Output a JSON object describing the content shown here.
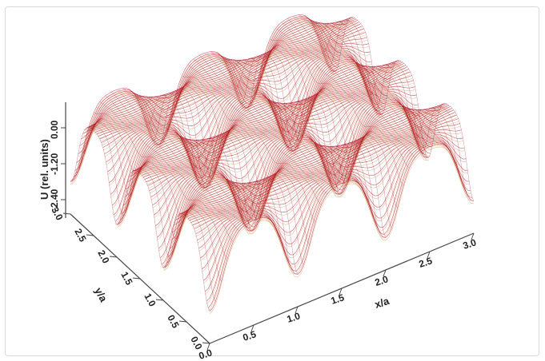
{
  "chart_data": {
    "type": "surface3d",
    "title": "",
    "xlabel": "x/a",
    "ylabel": "y/a",
    "zlabel": "U  (rel. units)",
    "x_ticks": [
      "0.0",
      "0.5",
      "1.0",
      "1.5",
      "2.0",
      "2.5",
      "3.0"
    ],
    "y_ticks": [
      "0.0",
      "0.5",
      "1.0",
      "1.5",
      "2.0",
      "2.5",
      "3.0"
    ],
    "z_ticks": [
      "0.00",
      "-1.20",
      "-2.40"
    ],
    "x_range": [
      0,
      3
    ],
    "y_range": [
      0,
      3
    ],
    "z_range": [
      -3.2,
      0.25
    ],
    "surface": "periodic potential with minima at lattice sites (x/a, y/a) integer and maxima along cell interiors",
    "colors": {
      "mesh": "#b3122a",
      "underside": "#c8964f",
      "axis": "#444444"
    }
  }
}
